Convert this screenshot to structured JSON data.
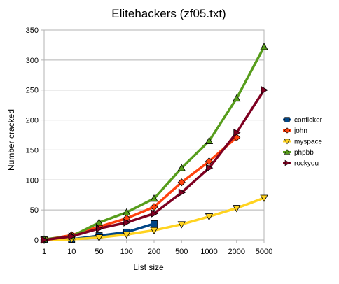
{
  "chart_data": {
    "type": "line",
    "title": "Elitehackers (zf05.txt)",
    "xlabel": "List size",
    "ylabel": "Number cracked",
    "categories": [
      "1",
      "10",
      "50",
      "100",
      "200",
      "500",
      "1000",
      "2000",
      "5000"
    ],
    "ylim": [
      0,
      350
    ],
    "yticks": [
      0,
      50,
      100,
      150,
      200,
      250,
      300,
      350
    ],
    "grid": "horizontal",
    "legend_position": "right",
    "series": [
      {
        "name": "conficker",
        "color": "#004586",
        "marker": "square",
        "values": [
          0,
          1,
          7,
          13,
          27,
          null,
          null,
          null,
          null
        ]
      },
      {
        "name": "john",
        "color": "#ff420e",
        "marker": "diamond",
        "values": [
          0,
          8,
          22,
          36,
          55,
          96,
          131,
          171,
          null
        ]
      },
      {
        "name": "myspace",
        "color": "#ffd320",
        "marker": "triangle-down",
        "values": [
          0,
          1,
          4,
          9,
          16,
          26,
          39,
          53,
          70
        ]
      },
      {
        "name": "phpbb",
        "color": "#579d1c",
        "marker": "triangle-up",
        "values": [
          1,
          6,
          29,
          46,
          69,
          120,
          165,
          236,
          322
        ]
      },
      {
        "name": "rockyou",
        "color": "#7e0021",
        "marker": "triangle-right",
        "values": [
          0,
          6,
          19,
          29,
          44,
          79,
          120,
          179,
          250
        ]
      }
    ]
  }
}
